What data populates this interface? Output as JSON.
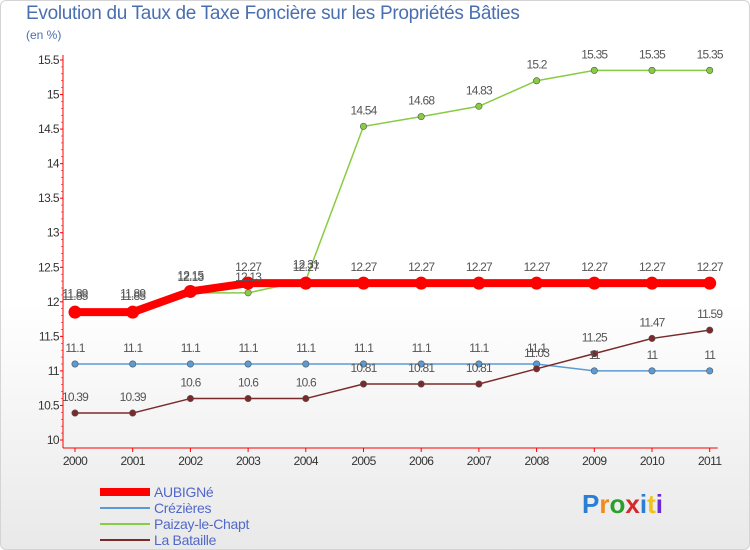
{
  "chart_data": {
    "type": "line",
    "title": "Evolution du Taux de Taxe Foncière sur les Propriétés Bâties",
    "ylabel": "(en %)",
    "xlabel": "",
    "ylim": [
      10,
      15.5
    ],
    "yticks": [
      10,
      10.5,
      11,
      11.5,
      12,
      12.5,
      13,
      13.5,
      14,
      14.5,
      15,
      15.5
    ],
    "categories": [
      "2000",
      "2001",
      "2002",
      "2003",
      "2004",
      "2005",
      "2006",
      "2007",
      "2008",
      "2009",
      "2010",
      "2011"
    ],
    "series": [
      {
        "name": "AUBIGNé",
        "color": "#ff0000",
        "values": [
          11.85,
          11.85,
          12.15,
          12.27,
          12.27,
          12.27,
          12.27,
          12.27,
          12.27,
          12.27,
          12.27,
          12.27
        ],
        "labels": [
          "11.85",
          "11.85",
          "12.15",
          "12.27",
          "12.27",
          "12.27",
          "12.27",
          "12.27",
          "12.27",
          "12.27",
          "12.27",
          "12.27"
        ]
      },
      {
        "name": "Crézières",
        "color": "#5b9bd5",
        "values": [
          11.1,
          11.1,
          11.1,
          11.1,
          11.1,
          11.1,
          11.1,
          11.1,
          11.1,
          11,
          11,
          11
        ],
        "labels": [
          "11.1",
          "11.1",
          "11.1",
          "11.1",
          "11.1",
          "11.1",
          "11.1",
          "11.1",
          "11.1",
          "11",
          "11",
          "11"
        ]
      },
      {
        "name": "Paizay-le-Chapt",
        "color": "#88cc44",
        "values": [
          11.89,
          11.89,
          12.13,
          12.13,
          12.31,
          14.54,
          14.68,
          14.83,
          15.2,
          15.35,
          15.35,
          15.35
        ],
        "labels": [
          "11.89",
          "11.89",
          "12.13",
          "12.13",
          "12.31",
          "14.54",
          "14.68",
          "14.83",
          "15.2",
          "15.35",
          "15.35",
          "15.35"
        ]
      },
      {
        "name": "La Bataille",
        "color": "#7a2a2a",
        "values": [
          10.39,
          10.39,
          10.6,
          10.6,
          10.6,
          10.81,
          10.81,
          10.81,
          11.03,
          11.25,
          11.47,
          11.59
        ],
        "labels": [
          "10.39",
          "10.39",
          "10.6",
          "10.6",
          "10.6",
          "10.81",
          "10.81",
          "10.81",
          "11.03",
          "11.25",
          "11.47",
          "11.59"
        ]
      }
    ],
    "legend_position": "bottom-left",
    "grid": false
  },
  "branding": {
    "logo_letters": [
      "P",
      "r",
      "o",
      "x",
      "i",
      "t",
      "i"
    ],
    "logo_colors": [
      "#2a7fd4",
      "#f08a1a",
      "#2aa02a",
      "#d42a2a",
      "#2a7fd4",
      "#f0c21a",
      "#6a2ad4"
    ]
  }
}
